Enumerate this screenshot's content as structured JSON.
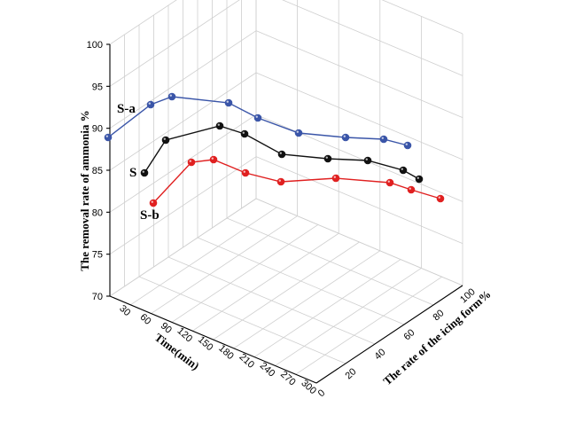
{
  "chart_data": {
    "type": "line",
    "projection": "3d",
    "zlabel": "The removal rate of ammonia %",
    "xlabel": "Time(min)",
    "ylabel": "The rate of the icing form%",
    "zlim": [
      70,
      100
    ],
    "z_ticks": [
      "70",
      "75",
      "80",
      "85",
      "90",
      "95",
      "100"
    ],
    "x_ticks": [
      "0",
      "30",
      "60",
      "90",
      "120",
      "150",
      "180",
      "210",
      "240",
      "270",
      "300"
    ],
    "y_ticks": [
      "0",
      "20",
      "40",
      "60",
      "80",
      "100"
    ],
    "grid": true,
    "series": [
      {
        "name": "S-a",
        "color": "#3a55a8",
        "points": [
          [
            122,
            155
          ],
          [
            170,
            118
          ],
          [
            194,
            109
          ],
          [
            258,
            116
          ],
          [
            291,
            133
          ],
          [
            337,
            150
          ],
          [
            390,
            155
          ],
          [
            433,
            157
          ],
          [
            460,
            164
          ]
        ],
        "values": [
          90.0,
          94.0,
          95.0,
          94.2,
          92.4,
          90.6,
          90.1,
          89.8,
          89.0
        ]
      },
      {
        "name": "S",
        "color": "#111111",
        "points": [
          [
            163,
            195
          ],
          [
            187,
            158
          ],
          [
            248,
            142
          ],
          [
            276,
            151
          ],
          [
            318,
            174
          ],
          [
            370,
            179
          ],
          [
            415,
            181
          ],
          [
            455,
            192
          ],
          [
            473,
            202
          ]
        ],
        "values": [
          85.6,
          89.6,
          91.3,
          90.4,
          87.9,
          87.4,
          87.2,
          86.0,
          85.0
        ]
      },
      {
        "name": "S-b",
        "color": "#e02020",
        "points": [
          [
            173,
            229
          ],
          [
            216,
            183
          ],
          [
            241,
            180
          ],
          [
            277,
            195
          ],
          [
            317,
            205
          ],
          [
            379,
            201
          ],
          [
            440,
            206
          ],
          [
            464,
            214
          ],
          [
            497,
            224
          ]
        ],
        "values": [
          82.0,
          86.9,
          87.3,
          85.7,
          84.6,
          85.0,
          84.5,
          83.6,
          82.6
        ]
      }
    ]
  }
}
